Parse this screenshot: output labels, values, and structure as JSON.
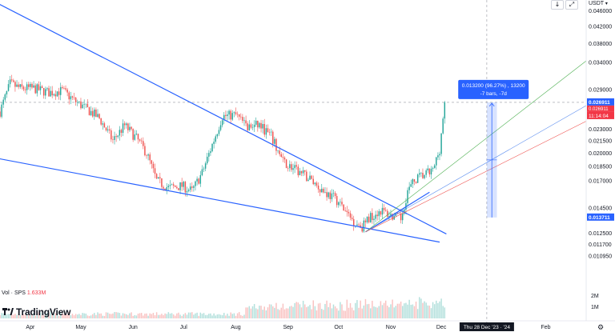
{
  "header": {
    "currency": "USDT",
    "dropdown_icon": "chevron-down-icon",
    "buttons": [
      {
        "name": "arrow-down-button",
        "glyph": "↓"
      },
      {
        "name": "fullscreen-button",
        "glyph": "⤢"
      }
    ]
  },
  "brand": {
    "logo_text": "TradingView",
    "logo_icon": "tradingview-logo-icon"
  },
  "volume": {
    "label": "Vol · SPS",
    "value": "1.633M",
    "axis_ticks": [
      "2M",
      "1M"
    ]
  },
  "colors": {
    "up": "#26a69a",
    "down": "#ef5350",
    "trend": "#2962ff",
    "measure": "#2962ff",
    "price_badge": "#2962ff",
    "countdown_badge": "#f23645"
  },
  "chart_data": {
    "type": "candlestick",
    "symbol_quote": "USDT",
    "y_scale": "log",
    "ylim": [
      0.0092,
      0.049
    ],
    "x_range": [
      "2023-03-14",
      "2024-02-25"
    ],
    "y_ticks": [
      0.046,
      0.042,
      0.038,
      0.034,
      0.029,
      0.023,
      0.0215,
      0.02,
      0.0185,
      0.017,
      0.0145,
      0.0125,
      0.0117,
      0.01095
    ],
    "y_tick_labels": [
      "0.046000",
      "0.042000",
      "0.038000",
      "0.034000",
      "0.029000",
      "0.023000",
      "0.021500",
      "0.020000",
      "0.018500",
      "0.017000",
      "0.014500",
      "0.012500",
      "0.011700",
      "0.010950"
    ],
    "x_ticks": [
      {
        "label": "Apr",
        "date": "2023-04-01"
      },
      {
        "label": "May",
        "date": "2023-05-01"
      },
      {
        "label": "Jun",
        "date": "2023-06-01"
      },
      {
        "label": "Jul",
        "date": "2023-07-01"
      },
      {
        "label": "Aug",
        "date": "2023-08-01"
      },
      {
        "label": "Sep",
        "date": "2023-09-01"
      },
      {
        "label": "Oct",
        "date": "2023-10-01"
      },
      {
        "label": "Nov",
        "date": "2023-11-01"
      },
      {
        "label": "Dec",
        "date": "2023-12-01"
      },
      {
        "label": "Feb",
        "date": "2024-02-01"
      }
    ],
    "crosshair_date_label": "Thu 28 Dec '23 · '24",
    "crosshair_date": "2023-12-28",
    "crosshair_price": 0.026911,
    "current_price": {
      "value": 0.026911,
      "label": "0.026911",
      "secondary_label": "0.026911",
      "countdown": "11:14:04"
    },
    "measure": {
      "top": 0.026911,
      "bottom": 0.013711,
      "bottom_label": "0.013711",
      "start_date": "2023-12-28",
      "end_date": "2024-01-03",
      "line1": "0.013200 (96.27%) , 13200",
      "line2": "-7 bars, -7d"
    },
    "price_path": [
      [
        "2023-03-14",
        0.0255
      ],
      [
        "2023-03-20",
        0.03
      ],
      [
        "2023-03-26",
        0.0292
      ],
      [
        "2023-04-03",
        0.0292
      ],
      [
        "2023-04-12",
        0.0285
      ],
      [
        "2023-04-20",
        0.0288
      ],
      [
        "2023-04-28",
        0.027
      ],
      [
        "2023-05-05",
        0.0258
      ],
      [
        "2023-05-12",
        0.0245
      ],
      [
        "2023-05-20",
        0.0215
      ],
      [
        "2023-05-27",
        0.0235
      ],
      [
        "2023-06-03",
        0.0218
      ],
      [
        "2023-06-09",
        0.02
      ],
      [
        "2023-06-15",
        0.017
      ],
      [
        "2023-06-22",
        0.0163
      ],
      [
        "2023-06-30",
        0.0165
      ],
      [
        "2023-07-06",
        0.016
      ],
      [
        "2023-07-12",
        0.0178
      ],
      [
        "2023-07-18",
        0.021
      ],
      [
        "2023-07-24",
        0.0248
      ],
      [
        "2023-08-01",
        0.025
      ],
      [
        "2023-08-08",
        0.0232
      ],
      [
        "2023-08-15",
        0.0236
      ],
      [
        "2023-08-22",
        0.022
      ],
      [
        "2023-08-29",
        0.019
      ],
      [
        "2023-09-06",
        0.018
      ],
      [
        "2023-09-14",
        0.0172
      ],
      [
        "2023-09-22",
        0.016
      ],
      [
        "2023-09-30",
        0.0152
      ],
      [
        "2023-10-06",
        0.014
      ],
      [
        "2023-10-11",
        0.0133
      ],
      [
        "2023-10-15",
        0.013
      ],
      [
        "2023-10-20",
        0.0138
      ],
      [
        "2023-10-26",
        0.0143
      ],
      [
        "2023-11-02",
        0.0138
      ],
      [
        "2023-11-07",
        0.0136
      ],
      [
        "2023-11-11",
        0.016
      ],
      [
        "2023-11-16",
        0.0172
      ],
      [
        "2023-11-21",
        0.0176
      ],
      [
        "2023-11-26",
        0.018
      ],
      [
        "2023-11-30",
        0.0205
      ],
      [
        "2023-12-03",
        0.0269
      ]
    ],
    "trendlines": [
      {
        "name": "upper-resistance",
        "from": [
          "2023-03-12",
          0.0482
        ],
        "to": [
          "2023-12-04",
          0.01245
        ],
        "width": 1.2
      },
      {
        "name": "lower-support",
        "from": [
          "2023-03-12",
          0.0194
        ],
        "to": [
          "2023-11-30",
          0.01187
        ],
        "width": 1.2
      },
      {
        "name": "channel-line",
        "from": [
          "2023-10-17",
          0.0126
        ],
        "to": [
          "2023-11-24",
          0.0159
        ],
        "width": 1.2
      }
    ],
    "fan_lines": [
      {
        "name": "fan-green",
        "color": "#4caf50",
        "from": [
          "2023-10-17",
          0.0126
        ],
        "to": [
          "2024-02-25",
          0.0343
        ]
      },
      {
        "name": "fan-blue",
        "color": "#5b8def",
        "from": [
          "2023-10-17",
          0.0126
        ],
        "to": [
          "2024-02-25",
          0.0264
        ]
      },
      {
        "name": "fan-red",
        "color": "#ef5350",
        "from": [
          "2023-10-17",
          0.0126
        ],
        "to": [
          "2024-02-25",
          0.0241
        ]
      }
    ]
  }
}
